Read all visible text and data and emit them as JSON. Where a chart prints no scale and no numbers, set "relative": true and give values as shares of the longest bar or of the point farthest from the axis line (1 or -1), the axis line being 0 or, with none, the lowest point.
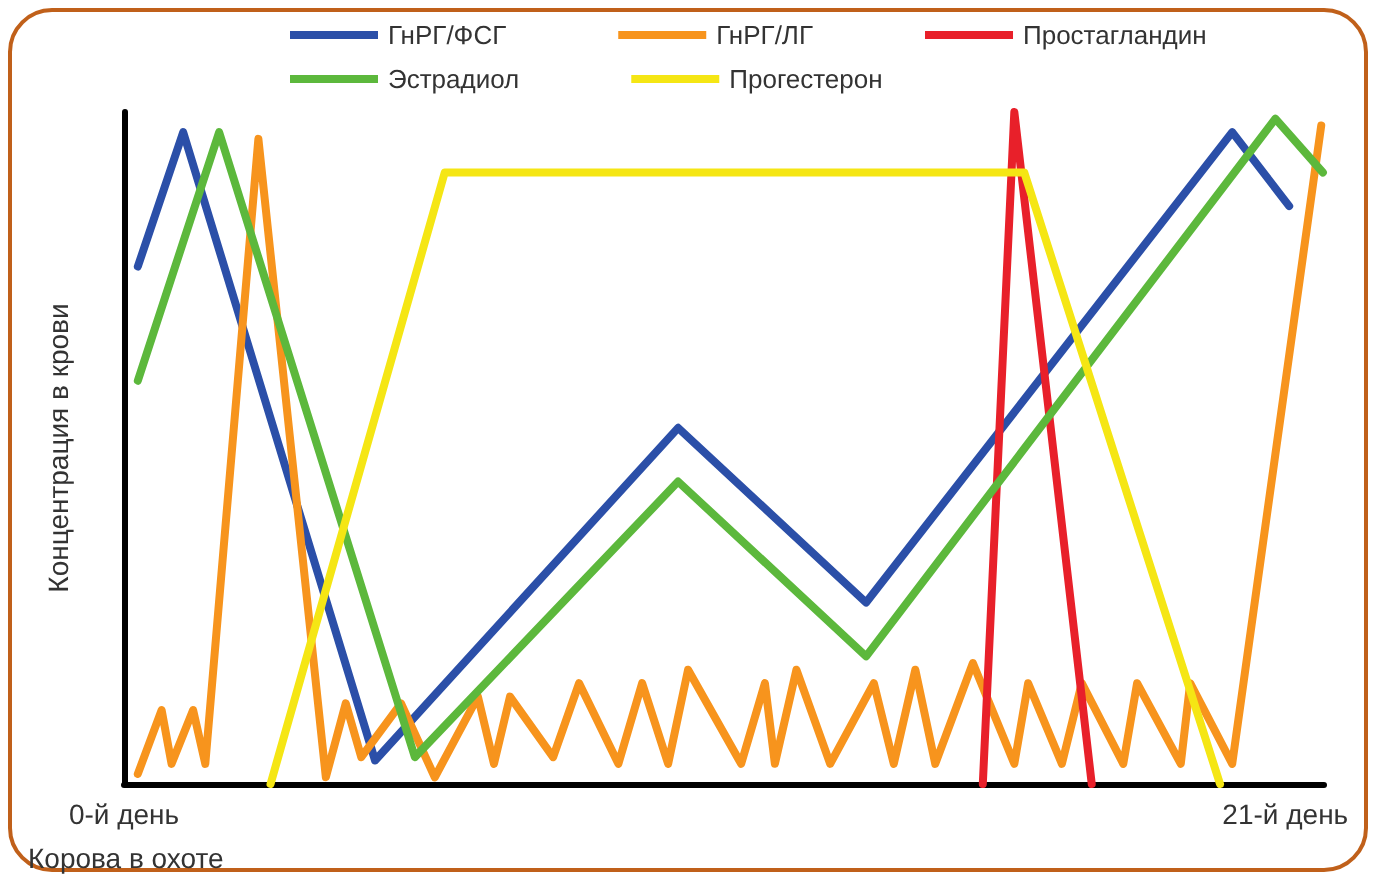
{
  "chart_data": {
    "type": "line",
    "relative": true,
    "ylabel": "Концентрация в крови",
    "annotations": [
      "Корова в охоте"
    ],
    "xlim": [
      0,
      21.7
    ],
    "xticks": [
      {
        "value": 0,
        "label": "0-й день"
      },
      {
        "value": 21,
        "label": "21-й день"
      }
    ],
    "legend": "top",
    "grid": false,
    "marker": "none",
    "line_style": "solid",
    "tick_labels": "x",
    "series": [
      {
        "name": "ГнРГ/ФСГ",
        "color": "#2b4fa8",
        "x": [
          0.25,
          1.07,
          4.54,
          10.02,
          13.42,
          20.04,
          21.07
        ],
        "values": [
          0.77,
          0.97,
          0.035,
          0.53,
          0.27,
          0.97,
          0.86
        ]
      },
      {
        "name": "ГнРГ/ЛГ",
        "color": "#f7941d",
        "x": [
          0.25,
          0.68,
          0.86,
          1.25,
          1.47,
          2.43,
          3.65,
          4.01,
          4.29,
          5.01,
          5.62,
          6.4,
          6.69,
          6.98,
          7.76,
          8.23,
          8.94,
          9.37,
          9.84,
          10.2,
          11.16,
          11.59,
          11.77,
          12.16,
          12.77,
          13.56,
          13.92,
          14.31,
          14.67,
          15.35,
          16.1,
          16.35,
          16.96,
          17.32,
          18.07,
          18.32,
          19.11,
          19.28,
          20.04,
          21.65
        ],
        "values": [
          0.015,
          0.11,
          0.03,
          0.11,
          0.03,
          0.96,
          0.01,
          0.12,
          0.04,
          0.12,
          0.01,
          0.13,
          0.03,
          0.13,
          0.04,
          0.15,
          0.03,
          0.15,
          0.03,
          0.17,
          0.03,
          0.15,
          0.03,
          0.17,
          0.03,
          0.15,
          0.03,
          0.17,
          0.03,
          0.18,
          0.03,
          0.15,
          0.03,
          0.15,
          0.03,
          0.15,
          0.03,
          0.15,
          0.03,
          0.98
        ]
      },
      {
        "name": "Простагландин",
        "color": "#e8202a",
        "x": [
          15.53,
          16.1,
          17.5
        ],
        "values": [
          0,
          1,
          0
        ]
      },
      {
        "name": "Эстрадиол",
        "color": "#5cb83c",
        "x": [
          0.25,
          1.72,
          5.26,
          10.02,
          13.42,
          20.82,
          21.68
        ],
        "values": [
          0.6,
          0.97,
          0.04,
          0.45,
          0.19,
          0.99,
          0.91
        ]
      },
      {
        "name": "Прогестерон",
        "color": "#f5e614",
        "x": [
          2.65,
          5.8,
          16.28,
          19.82
        ],
        "values": [
          0,
          0.91,
          0.91,
          0
        ]
      }
    ]
  }
}
